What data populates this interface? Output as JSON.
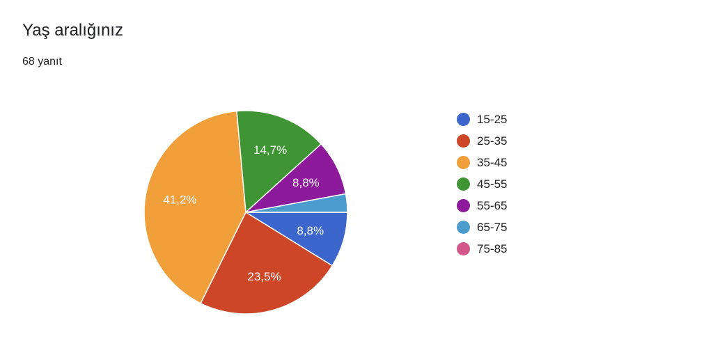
{
  "header": {
    "title": "Yaş aralığınız",
    "response_count": "68 yanıt"
  },
  "chart_data": {
    "type": "pie",
    "title": "Yaş aralığınız",
    "subtitle": "68 yanıt",
    "legend_position": "right",
    "start_angle_deg": 0,
    "direction": "clockwise",
    "slices": [
      {
        "label": "15-25",
        "percent": 8.8,
        "value_label": "8,8%",
        "color": "#3d66cc"
      },
      {
        "label": "25-35",
        "percent": 23.5,
        "value_label": "23,5%",
        "color": "#cc4627"
      },
      {
        "label": "35-45",
        "percent": 41.2,
        "value_label": "41,2%",
        "color": "#f09f3a"
      },
      {
        "label": "45-55",
        "percent": 14.7,
        "value_label": "14,7%",
        "color": "#3f9534"
      },
      {
        "label": "55-65",
        "percent": 8.8,
        "value_label": "8,8%",
        "color": "#8c1a9b"
      },
      {
        "label": "65-75",
        "percent": 2.9,
        "value_label": "",
        "color": "#4b9ccc"
      },
      {
        "label": "75-85",
        "percent": 0,
        "value_label": "",
        "color": "#d4578a"
      }
    ]
  }
}
